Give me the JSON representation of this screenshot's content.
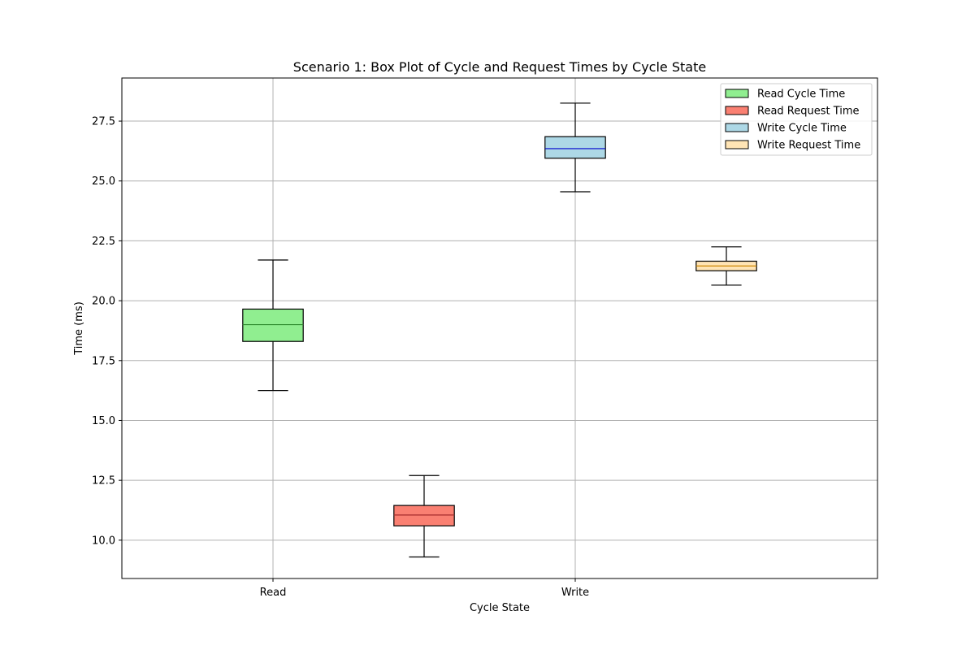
{
  "chart_data": {
    "type": "box",
    "title": "Scenario 1: Box Plot of Cycle and Request Times by Cycle State",
    "xlabel": "Cycle State",
    "ylabel": "Time (ms)",
    "categories": [
      "Read",
      "Write"
    ],
    "ylim": [
      8.4,
      29.3
    ],
    "yticks": [
      "10.0",
      "12.5",
      "15.0",
      "17.5",
      "20.0",
      "22.5",
      "25.0",
      "27.5"
    ],
    "grid": true,
    "legend_position": "top-right",
    "series": [
      {
        "name": "Read Cycle Time",
        "color": "#90ee90",
        "median_color": "#2e8b2e",
        "x": 1.0,
        "stats": {
          "whisker_low": 16.25,
          "q1": 18.3,
          "median": 19.0,
          "q3": 19.65,
          "whisker_high": 21.7
        }
      },
      {
        "name": "Read Request Time",
        "color": "#fa8072",
        "median_color": "#a52a2a",
        "x": 1.5,
        "stats": {
          "whisker_low": 9.3,
          "q1": 10.6,
          "median": 11.05,
          "q3": 11.45,
          "whisker_high": 12.7
        }
      },
      {
        "name": "Write Cycle Time",
        "color": "#add8e6",
        "median_color": "#0000cd",
        "x": 2.0,
        "stats": {
          "whisker_low": 24.55,
          "q1": 25.95,
          "median": 26.35,
          "q3": 26.85,
          "whisker_high": 28.25
        }
      },
      {
        "name": "Write Request Time",
        "color": "#ffe4b5",
        "median_color": "#cd8500",
        "x": 2.5,
        "stats": {
          "whisker_low": 20.65,
          "q1": 21.25,
          "median": 21.45,
          "q3": 21.65,
          "whisker_high": 22.25
        }
      }
    ]
  }
}
